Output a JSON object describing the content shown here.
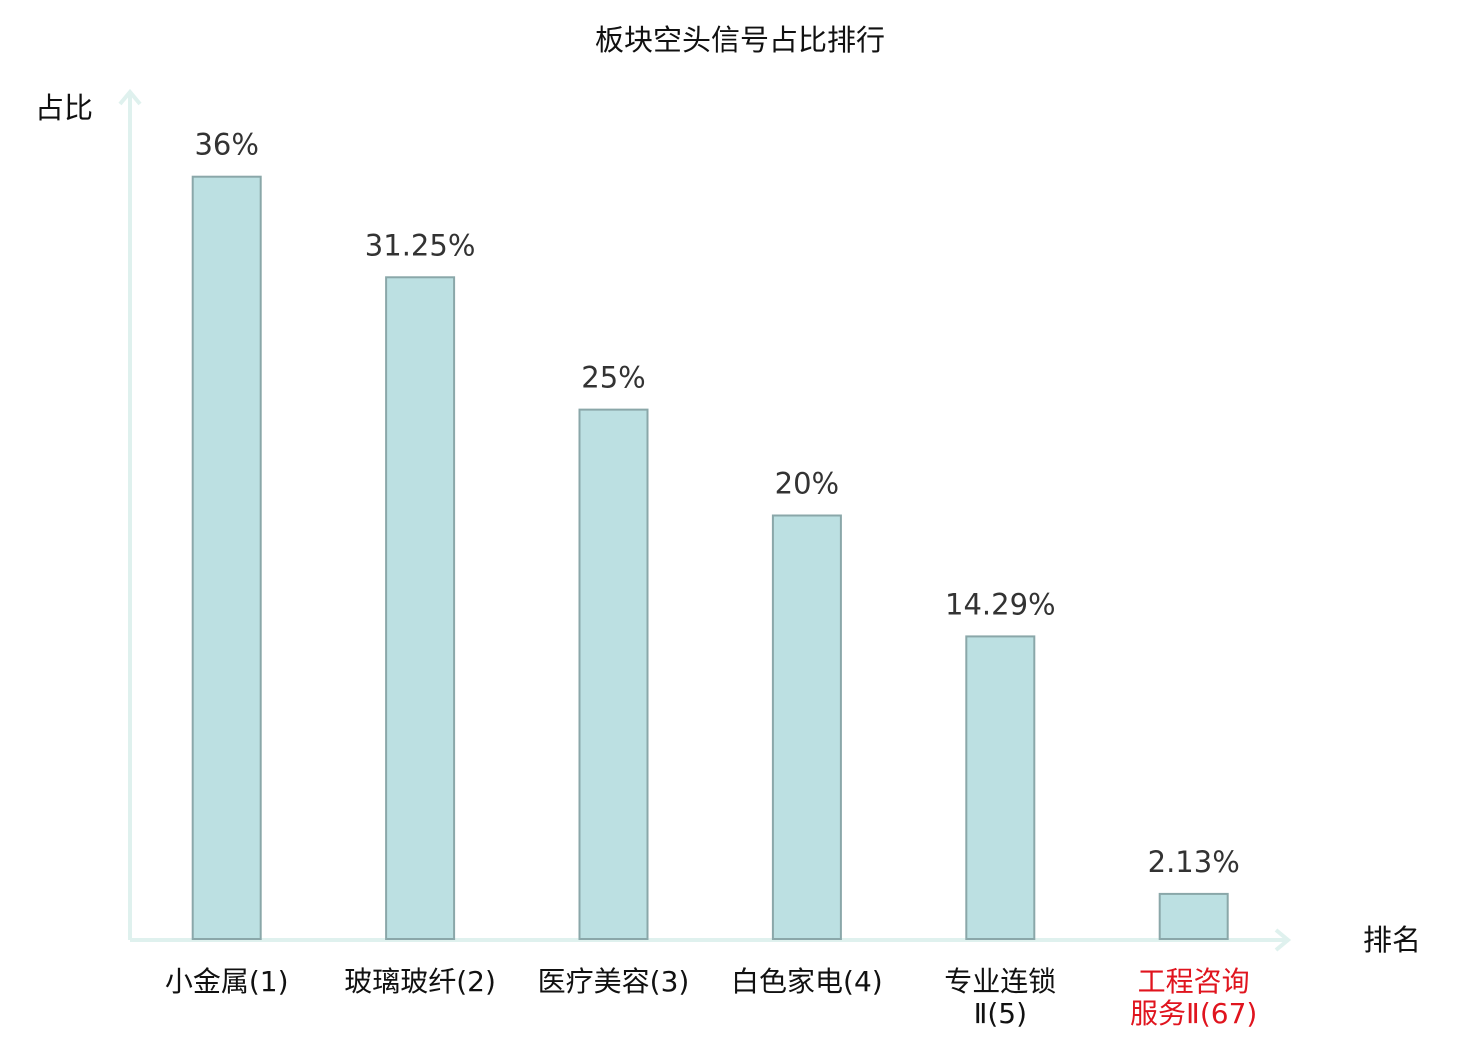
{
  "chart_data": {
    "type": "bar",
    "title": "板块空头信号占比排行",
    "y_label": "占比",
    "x_label": "排名",
    "categories": [
      "小金属(1)",
      "玻璃玻纤(2)",
      "医疗美容(3)",
      "白色家电(4)",
      "专业连锁\nⅡ(5)",
      "工程咨询\n服务Ⅱ(67)"
    ],
    "category_colors": [
      "#111111",
      "#111111",
      "#111111",
      "#111111",
      "#111111",
      "#e0141e"
    ],
    "values": [
      36,
      31.25,
      25,
      20,
      14.29,
      2.13
    ],
    "value_labels": [
      "36%",
      "31.25%",
      "25%",
      "20%",
      "14.29%",
      "2.13%"
    ],
    "color": "#bce0e2",
    "ylim": [
      0,
      40
    ]
  }
}
